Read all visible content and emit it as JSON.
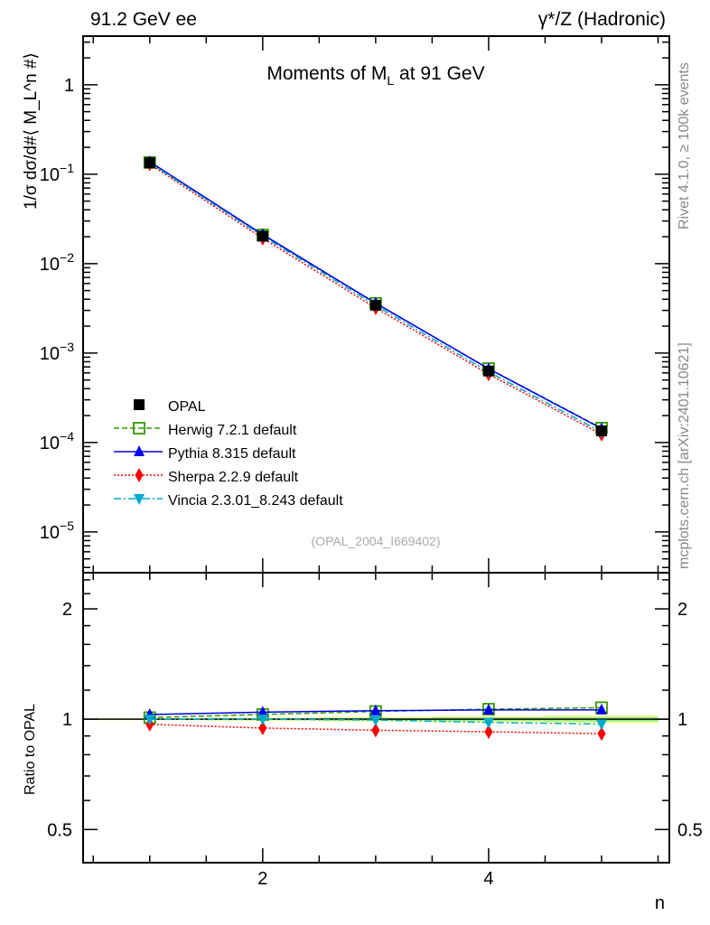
{
  "header": {
    "left": "91.2 GeV ee",
    "right": "γ*/Z (Hadronic)"
  },
  "side": {
    "rivet": "Rivet 4.1.0, ≥ 100k events",
    "mcplots": "mcplots.cern.ch [arXiv:2401.10621]"
  },
  "chart_data": {
    "type": "line",
    "title": "Moments of M_L at 91 GeV",
    "title_parts": {
      "pre": "Moments of M",
      "sub": "L",
      "post": " at 91 GeV"
    },
    "watermark": "(OPAL_2004_I669402)",
    "xlabel": "n",
    "ylabel": "1/σ  dσ/d#⟨ M_L^n #⟩",
    "ylabel_parts": {
      "a": "1/σ  dσ/d#⟨ M",
      "sub": "L",
      "sup": "n",
      "b": " #⟩"
    },
    "ratio_ylabel": "Ratio to OPAL",
    "xlim": [
      0.41,
      5.6
    ],
    "ylim": [
      3.5e-06,
      3.5
    ],
    "ylog": true,
    "ratio_ylim": [
      0.406,
      2.51
    ],
    "ratio_ylog": true,
    "x_ticks": [
      2,
      4
    ],
    "y_ticks": [
      {
        "v": 1,
        "base": "1",
        "exp": ""
      },
      {
        "v": 0.1,
        "base": "10",
        "exp": "−1"
      },
      {
        "v": 0.01,
        "base": "10",
        "exp": "−2"
      },
      {
        "v": 0.001,
        "base": "10",
        "exp": "−3"
      },
      {
        "v": 0.0001,
        "base": "10",
        "exp": "−4"
      },
      {
        "v": 1e-05,
        "base": "10",
        "exp": "−5"
      }
    ],
    "ratio_ticks": [
      {
        "v": 0.5,
        "label": "0.5"
      },
      {
        "v": 1,
        "label": "1"
      },
      {
        "v": 2,
        "label": "2"
      }
    ],
    "x": [
      1,
      2,
      3,
      4,
      5
    ],
    "data": {
      "name": "OPAL",
      "values": [
        0.134,
        0.0203,
        0.00343,
        0.00063,
        0.000135
      ],
      "ratio_err": [
        0.006,
        0.01,
        0.015,
        0.02,
        0.025
      ]
    },
    "series": [
      {
        "name": "Herwig 7.2.1 default",
        "color": "#339900",
        "dash": "6,3",
        "marker": "open-square",
        "values": [
          0.1353,
          0.0209,
          0.0036,
          0.000671,
          0.000145
        ],
        "ratio": [
          1.01,
          1.03,
          1.05,
          1.065,
          1.075
        ]
      },
      {
        "name": "Pythia 8.315 default",
        "color": "#0000ee",
        "dash": "",
        "marker": "triangle-up",
        "values": [
          0.138,
          0.0212,
          0.00362,
          0.000668,
          0.000143
        ],
        "ratio": [
          1.03,
          1.045,
          1.055,
          1.06,
          1.06
        ]
      },
      {
        "name": "Sherpa 2.2.9 default",
        "color": "#ff0000",
        "dash": "2,2",
        "marker": "diamond",
        "values": [
          0.1297,
          0.0192,
          0.0032,
          0.000582,
          0.0001233
        ],
        "ratio": [
          0.968,
          0.946,
          0.933,
          0.924,
          0.913
        ]
      },
      {
        "name": "Vincia 2.3.01_8.243 default",
        "color": "#00aacc",
        "dash": "8,3,2,3",
        "marker": "triangle-down",
        "values": [
          0.134,
          0.0203,
          0.00341,
          0.000617,
          0.000131
        ],
        "ratio": [
          1.0,
          1.0,
          0.995,
          0.98,
          0.97
        ]
      }
    ]
  }
}
